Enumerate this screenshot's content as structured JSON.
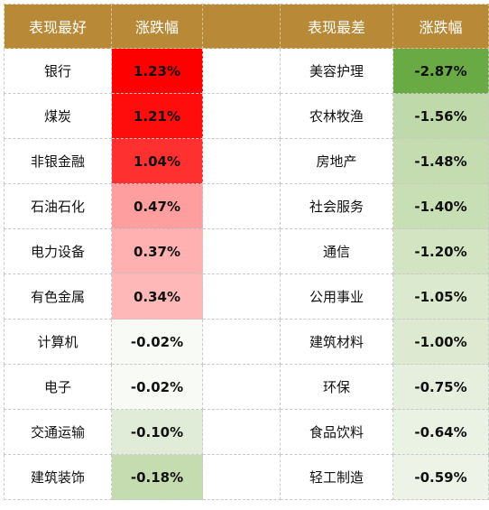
{
  "header": {
    "best_label": "表现最好",
    "change_label_left": "涨跌幅",
    "worst_label": "表现最差",
    "change_label_right": "涨跌幅"
  },
  "best": [
    {
      "name": "银行",
      "change": "1.23%",
      "color": "#ff0000"
    },
    {
      "name": "煤炭",
      "change": "1.21%",
      "color": "#ff0c0c"
    },
    {
      "name": "非银金融",
      "change": "1.04%",
      "color": "#ff3030"
    },
    {
      "name": "石油石化",
      "change": "0.47%",
      "color": "#ff9e9e"
    },
    {
      "name": "电力设备",
      "change": "0.37%",
      "color": "#ffb1b1"
    },
    {
      "name": "有色金属",
      "change": "0.34%",
      "color": "#ffb8b8"
    },
    {
      "name": "计算机",
      "change": "-0.02%",
      "color": "#f7faf5"
    },
    {
      "name": "电子",
      "change": "-0.02%",
      "color": "#f7faf5"
    },
    {
      "name": "交通运输",
      "change": "-0.10%",
      "color": "#e1ecd8"
    },
    {
      "name": "建筑装饰",
      "change": "-0.18%",
      "color": "#c4dcb0"
    }
  ],
  "worst": [
    {
      "name": "美容护理",
      "change": "-2.87%",
      "color": "#6aaa44"
    },
    {
      "name": "农林牧渔",
      "change": "-1.56%",
      "color": "#bfd9aa"
    },
    {
      "name": "房地产",
      "change": "-1.48%",
      "color": "#c4dcb0"
    },
    {
      "name": "社会服务",
      "change": "-1.40%",
      "color": "#c8deb5"
    },
    {
      "name": "通信",
      "change": "-1.20%",
      "color": "#d2e4c2"
    },
    {
      "name": "公用事业",
      "change": "-1.05%",
      "color": "#dbe9cf"
    },
    {
      "name": "建筑材料",
      "change": "-1.00%",
      "color": "#dde9d1"
    },
    {
      "name": "环保",
      "change": "-0.75%",
      "color": "#e6efdd"
    },
    {
      "name": "食品饮料",
      "change": "-0.64%",
      "color": "#eaf2e3"
    },
    {
      "name": "轻工制造",
      "change": "-0.59%",
      "color": "#edf4e7"
    }
  ]
}
